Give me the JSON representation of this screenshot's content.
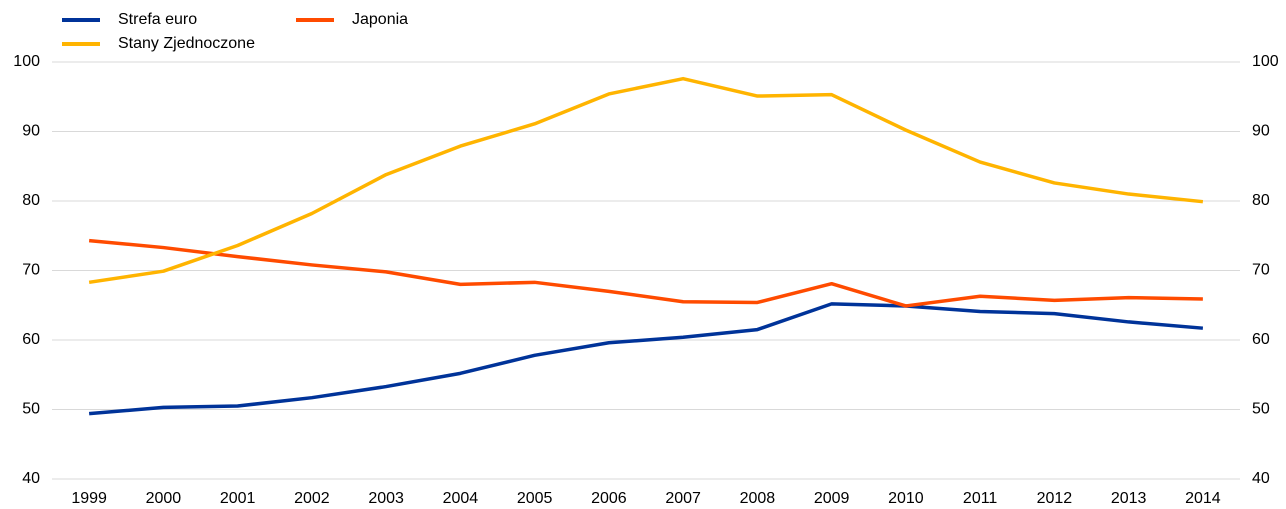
{
  "chart_data": {
    "type": "line",
    "categories": [
      "1999",
      "2000",
      "2001",
      "2002",
      "2003",
      "2004",
      "2005",
      "2006",
      "2007",
      "2008",
      "2009",
      "2010",
      "2011",
      "2012",
      "2013",
      "2014"
    ],
    "series": [
      {
        "name": "Strefa euro",
        "color": "#003399",
        "values": [
          49.4,
          50.3,
          50.5,
          51.7,
          53.3,
          55.2,
          57.8,
          59.6,
          60.4,
          61.5,
          65.2,
          64.9,
          64.1,
          63.8,
          62.6,
          61.7
        ]
      },
      {
        "name": "Japonia",
        "color": "#ff4b00",
        "values": [
          74.3,
          73.3,
          72.0,
          70.8,
          69.8,
          68.0,
          68.3,
          67.0,
          65.5,
          65.4,
          68.1,
          64.9,
          66.3,
          65.7,
          66.1,
          65.9
        ]
      },
      {
        "name": "Stany Zjednoczone",
        "color": "#ffb400",
        "values": [
          68.3,
          69.9,
          73.6,
          78.2,
          83.8,
          87.9,
          91.1,
          95.4,
          97.6,
          95.1,
          95.3,
          90.2,
          85.6,
          82.6,
          81.0,
          79.9
        ]
      }
    ],
    "ylim": [
      40,
      100
    ],
    "yticks": [
      40,
      50,
      60,
      70,
      80,
      90,
      100
    ],
    "y2lim": [
      40,
      100
    ],
    "y2ticks": [
      40,
      50,
      60,
      70,
      80,
      90,
      100
    ],
    "grid": true,
    "legend": "top-left"
  }
}
